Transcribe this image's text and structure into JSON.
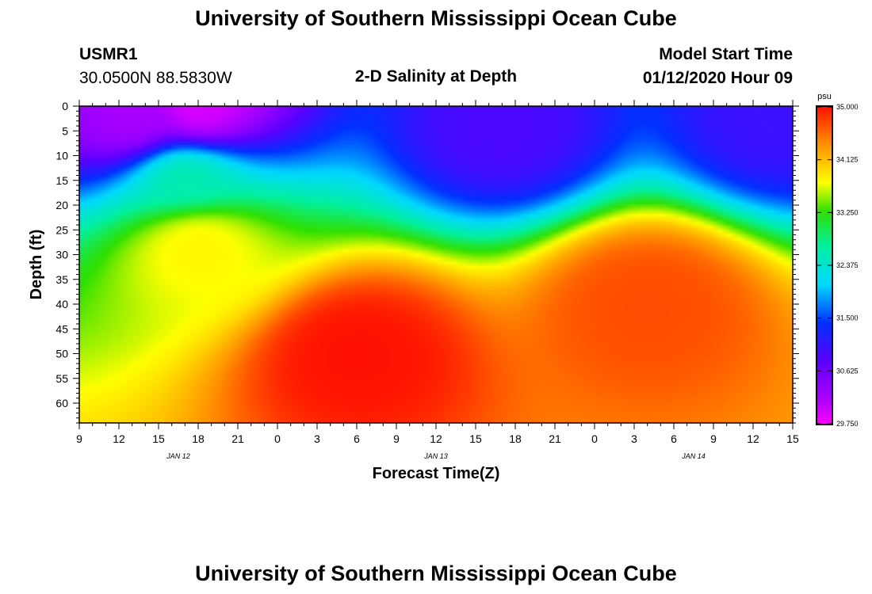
{
  "header": {
    "title": "University of Southern Mississippi Ocean Cube",
    "station": "USMR1",
    "coords": "30.0500N 88.5830W",
    "plot_title": "2-D Salinity at Depth",
    "model_start_label": "Model Start Time",
    "model_start_value": "01/12/2020 Hour 09"
  },
  "footer": {
    "title": "University of Southern Mississippi Ocean Cube"
  },
  "chart_data": {
    "type": "heatmap",
    "title": "2-D Salinity at Depth",
    "xlabel": "Forecast Time(Z)",
    "ylabel": "Depth (ft)",
    "x_tick_labels": [
      "9",
      "12",
      "15",
      "18",
      "21",
      "0",
      "3",
      "6",
      "9",
      "12",
      "15",
      "18",
      "21",
      "0",
      "3",
      "6",
      "9",
      "12",
      "15"
    ],
    "x_hours": [
      0,
      54
    ],
    "date_labels": [
      {
        "label": "JAN 12",
        "hour": 7.5
      },
      {
        "label": "JAN 13",
        "hour": 27
      },
      {
        "label": "JAN 14",
        "hour": 46.5
      }
    ],
    "y_tick_labels": [
      "0",
      "5",
      "10",
      "15",
      "20",
      "25",
      "30",
      "35",
      "40",
      "45",
      "50",
      "55",
      "60"
    ],
    "ylim": [
      0,
      64
    ],
    "colorbar": {
      "unit": "psu",
      "min": 29.75,
      "max": 35.0,
      "tick_labels": [
        "35.000",
        "34.125",
        "33.250",
        "32.375",
        "31.500",
        "30.625",
        "29.750"
      ],
      "tick_values": [
        35.0,
        34.125,
        33.25,
        32.375,
        31.5,
        30.625,
        29.75
      ]
    },
    "features": [
      {
        "hour": 4,
        "depth": 3,
        "value": 30.2
      },
      {
        "hour": 9,
        "depth": 1,
        "value": 29.9
      },
      {
        "hour": 8,
        "depth": 14,
        "value": 32.6
      },
      {
        "hour": 9,
        "depth": 28,
        "value": 33.8
      },
      {
        "hour": 32,
        "depth": 4,
        "value": 30.9
      },
      {
        "hour": 53,
        "depth": 2,
        "value": 31.0
      },
      {
        "hour": 21,
        "depth": 50,
        "value": 35.0
      },
      {
        "hour": 43,
        "depth": 40,
        "value": 34.7
      }
    ]
  }
}
